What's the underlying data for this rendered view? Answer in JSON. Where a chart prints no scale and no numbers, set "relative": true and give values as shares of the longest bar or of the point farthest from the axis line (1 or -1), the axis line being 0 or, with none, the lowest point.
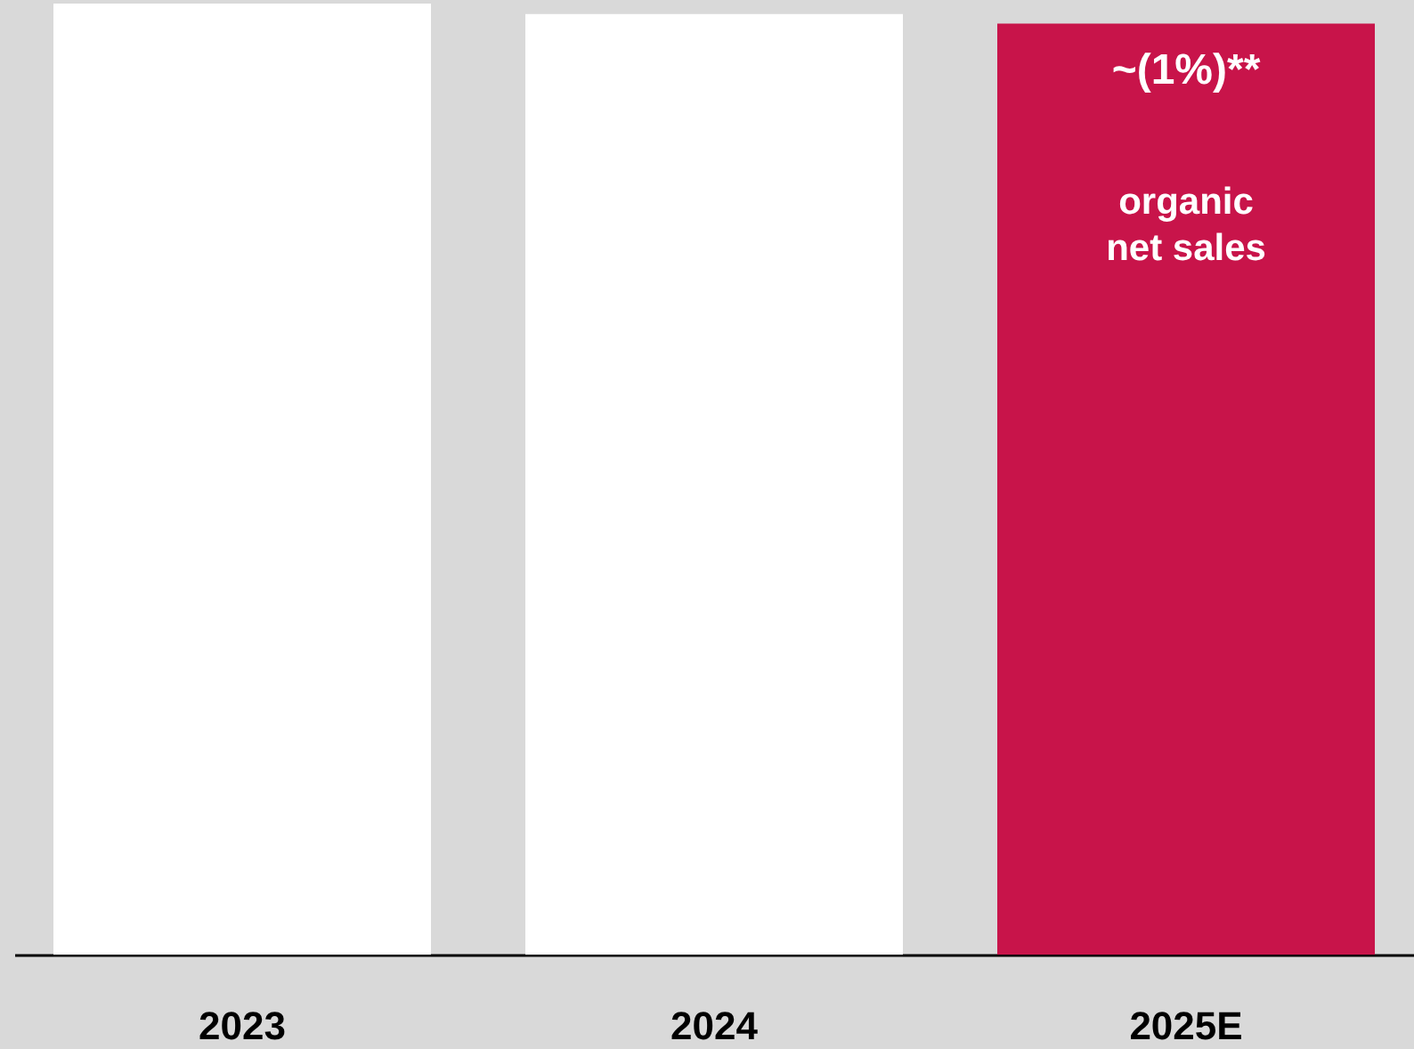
{
  "chart_data": {
    "type": "bar",
    "relative": true,
    "categories": [
      "2023",
      "2024",
      "2025E"
    ],
    "values": [
      1,
      0.989,
      0.979
    ],
    "colors": [
      "#ffffff",
      "#ffffff",
      "#c8144a"
    ],
    "annotations": [
      "~(1%)**",
      "organic\nnet sales"
    ]
  }
}
